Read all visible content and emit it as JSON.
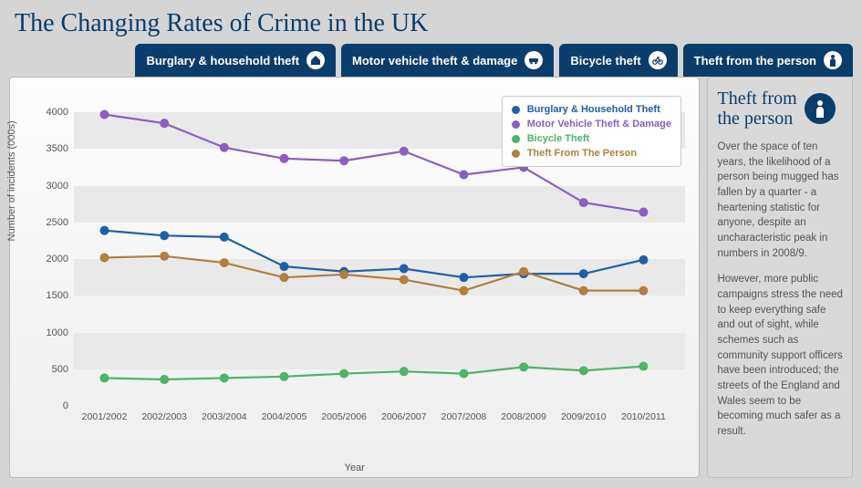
{
  "title": "The Changing Rates of Crime in the UK",
  "tabs": [
    {
      "label": "Burglary & household theft",
      "icon": "home"
    },
    {
      "label": "Motor vehicle theft & damage",
      "icon": "car"
    },
    {
      "label": "Bicycle theft",
      "icon": "bike"
    },
    {
      "label": "Theft from the person",
      "icon": "person"
    }
  ],
  "side": {
    "heading_line1": "Theft from",
    "heading_line2": "the person",
    "icon": "person",
    "para1": "Over the space of ten years, the likelihood of a person being mugged has fallen by a quarter - a heartening statistic for anyone, despite an uncharacteristic peak in numbers in 2008/9.",
    "para2": "However, more public campaigns stress the need to keep everything safe and out of sight, while schemes such as community support officers have been introduced; the streets of the England and Wales seem to be becoming much safer as a result."
  },
  "chart": {
    "type": "line",
    "xlabel": "Year",
    "ylabel": "Number of incidents (000s)",
    "ylim": [
      0,
      4200
    ],
    "ytick_step": 500,
    "background_color": "#f5f5f5",
    "band_color": "#e9e9e9",
    "grid_on": true,
    "categories": [
      "2001/2002",
      "2002/2003",
      "2003/2004",
      "2004/2005",
      "2005/2006",
      "2006/2007",
      "2007/2008",
      "2008/2009",
      "2009/2010",
      "2010/2011"
    ],
    "legend_position": "top-right",
    "marker_size": 5,
    "line_width": 2.2,
    "label_fontsize": 11,
    "tick_fontsize": 11,
    "series": [
      {
        "name": "Burglary & Household Theft",
        "color": "#1f5fa8",
        "values": [
          2390,
          2320,
          2300,
          1900,
          1830,
          1870,
          1750,
          1800,
          1800,
          1990
        ]
      },
      {
        "name": "Motor Vehicle Theft & Damage",
        "color": "#8b5fc0",
        "values": [
          3970,
          3850,
          3520,
          3370,
          3340,
          3470,
          3150,
          3250,
          2770,
          2640
        ]
      },
      {
        "name": "Bicycle Theft",
        "color": "#4fb36b",
        "values": [
          380,
          360,
          380,
          400,
          440,
          470,
          440,
          530,
          480,
          540
        ]
      },
      {
        "name": "Theft From The Person",
        "color": "#b08040",
        "values": [
          2020,
          2040,
          1950,
          1750,
          1790,
          1720,
          1570,
          1830,
          1570,
          1570
        ]
      }
    ]
  }
}
